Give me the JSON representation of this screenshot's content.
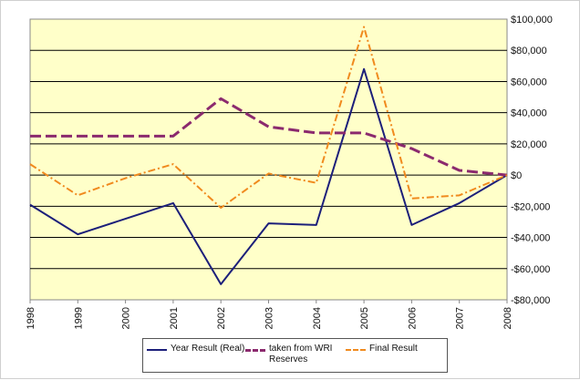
{
  "chart_data": {
    "type": "line",
    "title": "",
    "xlabel": "",
    "ylabel": "",
    "categories": [
      "1998",
      "1999",
      "2000",
      "2001",
      "2002",
      "2003",
      "2004",
      "2005",
      "2006",
      "2007",
      "2008"
    ],
    "ylim": [
      -80000,
      100000
    ],
    "y_ticks": [
      -80000,
      -60000,
      -40000,
      -20000,
      0,
      20000,
      40000,
      60000,
      80000,
      100000
    ],
    "y_tick_labels": [
      "-$80,000",
      "-$60,000",
      "-$40,000",
      "-$20,000",
      "$0",
      "$20,000",
      "$40,000",
      "$60,000",
      "$80,000",
      "$100,000"
    ],
    "y_axis_side": "right",
    "grid": "horizontal",
    "plot_background": "#ffffc9",
    "legend_position": "bottom",
    "series": [
      {
        "name": "Year Result (Real)",
        "color": "#1c1f7a",
        "style": "solid",
        "values": [
          -19000,
          -38000,
          -28000,
          -18000,
          -70000,
          -31000,
          -32000,
          68000,
          -32000,
          -18000,
          0
        ]
      },
      {
        "name": "taken from WRI\nReserves",
        "color": "#8b2a6e",
        "style": "dashed",
        "values": [
          25000,
          25000,
          25000,
          25000,
          49000,
          31000,
          27000,
          27000,
          17000,
          3000,
          0
        ]
      },
      {
        "name": "Final Result",
        "color": "#f08a1e",
        "style": "dashdot",
        "values": [
          7000,
          -13000,
          -2000,
          7000,
          -21000,
          1000,
          -5000,
          95000,
          -15000,
          -13000,
          0
        ]
      }
    ]
  }
}
